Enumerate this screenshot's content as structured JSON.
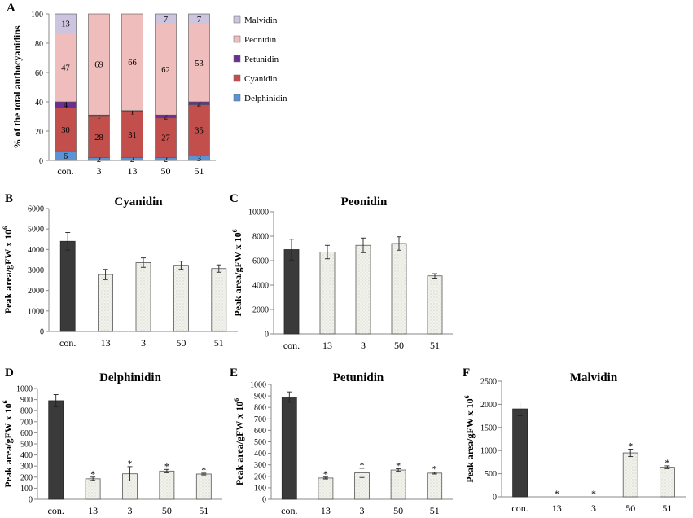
{
  "colors": {
    "Delphinidin": "#5b93d4",
    "Cyanidin": "#c24f4c",
    "Petunidin": "#6b2f94",
    "Peonidin": "#efbdbb",
    "Malvidin": "#cdc4df",
    "control_bar": "#3a3a3a",
    "sample_bar": "#f2f2ec",
    "axis": "#888888"
  },
  "chart_data": [
    {
      "panel": "A",
      "type": "bar",
      "stacked": true,
      "title": "",
      "ylabel": "% of the total anthocyanidins",
      "ylim": [
        0,
        100
      ],
      "yticks": [
        0,
        20,
        40,
        60,
        80,
        100
      ],
      "categories": [
        "con.",
        "3",
        "13",
        "50",
        "51"
      ],
      "legend_order": [
        "Malvidin",
        "Peonidin",
        "Petunidin",
        "Cyanidin",
        "Delphinidin"
      ],
      "series": [
        {
          "name": "Delphinidin",
          "values": [
            6,
            2,
            2,
            2,
            3
          ],
          "labels": [
            "6",
            "2",
            "2",
            "2",
            "3"
          ]
        },
        {
          "name": "Cyanidin",
          "values": [
            30,
            28,
            31,
            27,
            35
          ],
          "labels": [
            "30",
            "28",
            "31",
            "27",
            "35"
          ]
        },
        {
          "name": "Petunidin",
          "values": [
            4,
            1,
            1,
            2,
            2
          ],
          "labels": [
            "4",
            "1",
            "1",
            "2",
            "2"
          ]
        },
        {
          "name": "Peonidin",
          "values": [
            47,
            69,
            66,
            62,
            53
          ],
          "labels": [
            "47",
            "69",
            "66",
            "62",
            "53"
          ]
        },
        {
          "name": "Malvidin",
          "values": [
            13,
            0,
            0,
            7,
            7
          ],
          "labels": [
            "13",
            "",
            "",
            "7",
            "7"
          ]
        }
      ]
    },
    {
      "panel": "B",
      "type": "bar",
      "title": "Cyanidin",
      "ylabel": "Peak area/gFW x 10",
      "ylabel_sup": "6",
      "ylim": [
        0,
        6000
      ],
      "yticks": [
        0,
        1000,
        2000,
        3000,
        4000,
        5000,
        6000
      ],
      "categories": [
        "con.",
        "13",
        "3",
        "50",
        "51"
      ],
      "values": [
        4400,
        2780,
        3360,
        3230,
        3070
      ],
      "errors": [
        430,
        250,
        230,
        200,
        180
      ],
      "significance": [
        "",
        "",
        "",
        "",
        ""
      ]
    },
    {
      "panel": "C",
      "type": "bar",
      "title": "Peonidin",
      "ylabel": "Peak area/gFW x 10",
      "ylabel_sup": "6",
      "ylim": [
        0,
        10000
      ],
      "yticks": [
        0,
        2000,
        4000,
        6000,
        8000,
        10000
      ],
      "categories": [
        "con.",
        "13",
        "3",
        "50",
        "51"
      ],
      "values": [
        6900,
        6700,
        7250,
        7400,
        4750
      ],
      "errors": [
        850,
        550,
        600,
        550,
        180
      ],
      "significance": [
        "",
        "",
        "",
        "",
        ""
      ]
    },
    {
      "panel": "D",
      "type": "bar",
      "title": "Delphinidin",
      "ylabel": "Peak area/gFW x 10",
      "ylabel_sup": "6",
      "ylim": [
        0,
        1000
      ],
      "yticks": [
        0,
        100,
        200,
        300,
        400,
        500,
        600,
        700,
        800,
        900,
        1000
      ],
      "categories": [
        "con.",
        "13",
        "3",
        "50",
        "51"
      ],
      "values": [
        890,
        185,
        230,
        255,
        228
      ],
      "errors": [
        55,
        15,
        65,
        15,
        8
      ],
      "significance": [
        "",
        "*",
        "*",
        "*",
        "*"
      ]
    },
    {
      "panel": "E",
      "type": "bar",
      "title": "Petunidin",
      "ylabel": "Peak area/gFW x 10",
      "ylabel_sup": "6",
      "ylim": [
        0,
        1000
      ],
      "yticks": [
        0,
        100,
        200,
        300,
        400,
        500,
        600,
        700,
        800,
        900,
        1000
      ],
      "categories": [
        "con.",
        "13",
        "3",
        "50",
        "51"
      ],
      "values": [
        890,
        185,
        230,
        255,
        228
      ],
      "errors": [
        45,
        8,
        40,
        12,
        8
      ],
      "significance": [
        "",
        "*",
        "*",
        "*",
        "*"
      ]
    },
    {
      "panel": "F",
      "type": "bar",
      "title": "Malvidin",
      "ylabel": "Peak area/gFW x 10",
      "ylabel_sup": "6",
      "ylim": [
        0,
        2500
      ],
      "yticks": [
        0,
        500,
        1000,
        1500,
        2000,
        2500
      ],
      "categories": [
        "con.",
        "13",
        "3",
        "50",
        "51"
      ],
      "values": [
        1900,
        0,
        0,
        950,
        640
      ],
      "errors": [
        150,
        0,
        0,
        80,
        30
      ],
      "significance": [
        "",
        "*",
        "*",
        "*",
        "*"
      ]
    }
  ]
}
